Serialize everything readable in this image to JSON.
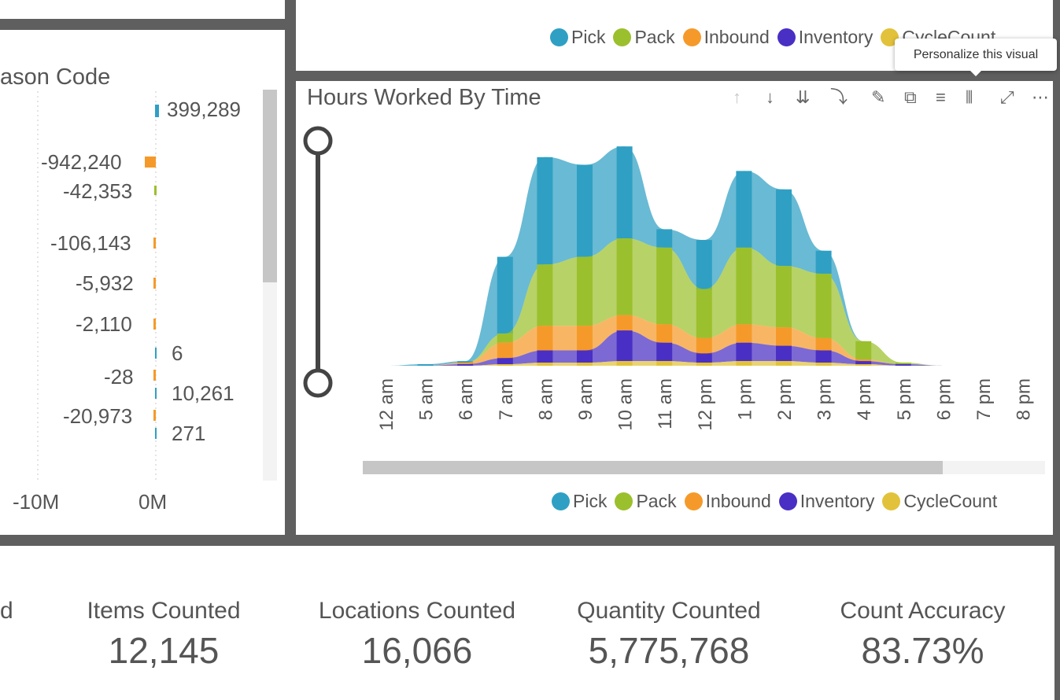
{
  "legend_top": {
    "items": [
      {
        "label": "Pick",
        "color": "#2fa0c4"
      },
      {
        "label": "Pack",
        "color": "#9bc02d"
      },
      {
        "label": "Inbound",
        "color": "#f59a2a"
      },
      {
        "label": "Inventory",
        "color": "#4a2fc4"
      },
      {
        "label": "CycleCount",
        "color": "#e2c23a"
      }
    ]
  },
  "left_visual": {
    "title": "ason Code",
    "labels": [
      {
        "text": "399,289",
        "color": "#2fa0c4"
      },
      {
        "text": "-942,240",
        "color": "#f59a2a"
      },
      {
        "text": "-42,353",
        "color": "#9bc02d"
      },
      {
        "text": "-106,143",
        "color": "#f59a2a"
      },
      {
        "text": "-5,932",
        "color": "#f59a2a"
      },
      {
        "text": "-2,110",
        "color": "#f59a2a"
      },
      {
        "text": "6",
        "color": "#2fa0c4"
      },
      {
        "text": "-28",
        "color": "#f59a2a"
      },
      {
        "text": "10,261",
        "color": "#2fa0c4"
      },
      {
        "text": "-20,973",
        "color": "#f59a2a"
      },
      {
        "text": "271",
        "color": "#2fa0c4"
      }
    ],
    "axis": [
      "-10M",
      "0M"
    ]
  },
  "tooltip": "Personalize this visual",
  "main_visual": {
    "title": "Hours Worked By Time",
    "toolbar_icons": [
      "arrow-up-icon",
      "arrow-down-icon",
      "double-arrow-down-icon",
      "expand-hierarchy-icon",
      "pin-icon",
      "copy-icon",
      "filter-icon",
      "personalize-icon",
      "focus-mode-icon",
      "more-options-icon"
    ]
  },
  "chart_data": {
    "type": "area",
    "title": "Hours Worked By Time",
    "categories": [
      "12 am",
      "5 am",
      "6 am",
      "7 am",
      "8 am",
      "9 am",
      "10 am",
      "11 am",
      "12 pm",
      "1 pm",
      "2 pm",
      "3 pm",
      "4 pm",
      "5 pm",
      "6 pm",
      "7 pm",
      "8 pm"
    ],
    "series": [
      {
        "name": "CycleCount",
        "color": "#e2c23a",
        "values": [
          0,
          0,
          0,
          1,
          2,
          2,
          3,
          3,
          2,
          3,
          3,
          2,
          1,
          0,
          0,
          0,
          0
        ]
      },
      {
        "name": "Inventory",
        "color": "#4a2fc4",
        "values": [
          0,
          0,
          1,
          4,
          8,
          8,
          20,
          12,
          6,
          12,
          10,
          8,
          2,
          1,
          0,
          0,
          0
        ]
      },
      {
        "name": "Inbound",
        "color": "#f59a2a",
        "values": [
          0,
          0,
          1,
          10,
          16,
          16,
          10,
          12,
          10,
          12,
          12,
          8,
          1,
          0,
          0,
          0,
          0
        ]
      },
      {
        "name": "Pack",
        "color": "#9bc02d",
        "values": [
          0,
          0,
          0,
          6,
          40,
          45,
          50,
          50,
          32,
          50,
          40,
          42,
          12,
          1,
          0,
          0,
          0
        ]
      },
      {
        "name": "Pick",
        "color": "#2fa0c4",
        "values": [
          0,
          1,
          1,
          50,
          70,
          60,
          60,
          12,
          32,
          50,
          50,
          15,
          0,
          0,
          0,
          0,
          0
        ]
      }
    ],
    "legend_placement": "bottom-right"
  },
  "legend_bottom": {
    "items": [
      {
        "label": "Pick",
        "color": "#2fa0c4"
      },
      {
        "label": "Pack",
        "color": "#9bc02d"
      },
      {
        "label": "Inbound",
        "color": "#f59a2a"
      },
      {
        "label": "Inventory",
        "color": "#4a2fc4"
      },
      {
        "label": "CycleCount",
        "color": "#e2c23a"
      }
    ]
  },
  "kpis": [
    {
      "label": "d",
      "value": ""
    },
    {
      "label": "Items Counted",
      "value": "12,145"
    },
    {
      "label": "Locations Counted",
      "value": "16,066"
    },
    {
      "label": "Quantity Counted",
      "value": "5,775,768"
    },
    {
      "label": "Count Accuracy",
      "value": "83.73%"
    }
  ]
}
